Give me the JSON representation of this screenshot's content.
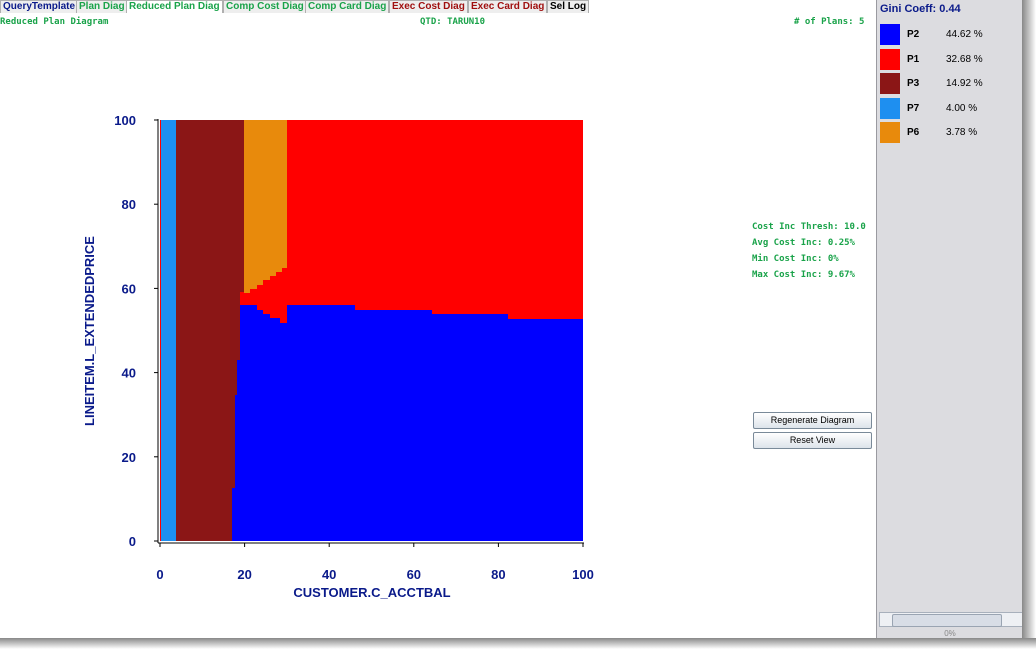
{
  "tabs": [
    {
      "label": "QueryTemplate",
      "color": "#0a1a8a"
    },
    {
      "label": "Plan Diag",
      "color": "#1aa34a"
    },
    {
      "label": "Reduced Plan Diag",
      "color": "#1aa34a",
      "selected": true
    },
    {
      "label": "Comp Cost Diag",
      "color": "#1aa34a"
    },
    {
      "label": "Comp Card Diag",
      "color": "#1aa34a"
    },
    {
      "label": "Exec Cost Diag",
      "color": "#a01010"
    },
    {
      "label": "Exec Card Diag",
      "color": "#a01010"
    },
    {
      "label": "Sel Log",
      "color": "#000000"
    }
  ],
  "header": {
    "title": "Reduced Plan Diagram",
    "qtd": "QTD: TARUN10",
    "plans": "# of Plans: 5"
  },
  "plot": {
    "xlabel": "CUSTOMER.C_ACCTBAL",
    "ylabel": "LINEITEM.L_EXTENDEDPRICE",
    "xlim": [
      0,
      100
    ],
    "ylim": [
      0,
      100
    ],
    "xticks": [
      0,
      20,
      40,
      60,
      80,
      100
    ],
    "yticks": [
      0,
      20,
      40,
      60,
      80,
      100
    ]
  },
  "stats": [
    "Cost Inc Thresh: 10.0",
    "Avg Cost Inc: 0.25%",
    "Min Cost Inc: 0%",
    "Max Cost Inc: 9.67%"
  ],
  "buttons": [
    "Regenerate Diagram",
    "Reset View"
  ],
  "sidebar": {
    "gini": "Gini Coeff: 0.44",
    "legend": [
      {
        "name": "P2",
        "color": "#0000ff",
        "share": "44.62 %"
      },
      {
        "name": "P1",
        "color": "#ff0000",
        "share": "32.68 %"
      },
      {
        "name": "P3",
        "color": "#8b1616",
        "share": "14.92 %"
      },
      {
        "name": "P7",
        "color": "#1e8ff0",
        "share": "4.00 %"
      },
      {
        "name": "P6",
        "color": "#e88a0c",
        "share": "3.78 %"
      }
    ]
  },
  "status": "0%"
}
